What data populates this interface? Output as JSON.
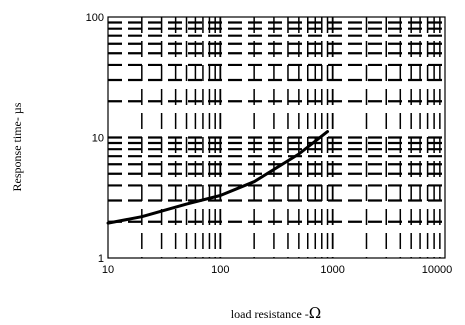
{
  "chart_data": {
    "type": "line",
    "title": "",
    "xlabel": "load resistance -Ω",
    "ylabel": "Response time- µs",
    "xscale": "log",
    "yscale": "log",
    "xlim": [
      10,
      10000
    ],
    "ylim": [
      1,
      100
    ],
    "grid": true,
    "x_tick_labels": [
      "10",
      "100",
      "1000",
      "10000"
    ],
    "y_tick_labels": [
      "1",
      "10",
      "100"
    ],
    "series": [
      {
        "x": [
          10,
          20,
          50,
          100,
          200,
          500,
          900
        ],
        "values": [
          1.95,
          2.2,
          2.8,
          3.3,
          4.3,
          7.3,
          11.2
        ]
      }
    ]
  }
}
